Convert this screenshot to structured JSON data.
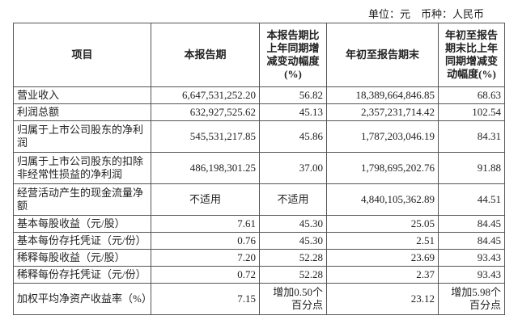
{
  "unit_line": "单位：元　币种：人民币",
  "headers": [
    "项目",
    "本报告期",
    "本报告期比上年同期增减变动幅度(%)",
    "年初至报告期末",
    "年初至报告期末比上年同期增减变动幅度(%)"
  ],
  "rows": [
    [
      "营业收入",
      "6,647,531,252.20",
      "56.82",
      "18,389,664,846.85",
      "68.63"
    ],
    [
      "利润总额",
      "632,927,525.62",
      "45.13",
      "2,357,231,714.42",
      "102.54"
    ],
    [
      "归属于上市公司股东的净利润",
      "545,531,217.85",
      "45.86",
      "1,787,203,046.19",
      "84.31"
    ],
    [
      "归属于上市公司股东的扣除非经常性损益的净利润",
      "486,198,301.25",
      "37.00",
      "1,798,695,202.76",
      "91.88"
    ],
    [
      "经营活动产生的现金流量净额",
      "不适用",
      "不适用",
      "4,840,105,362.89",
      "44.51"
    ],
    [
      "基本每股收益（元/股）",
      "7.61",
      "45.30",
      "25.05",
      "84.45"
    ],
    [
      "基本每份存托凭证（元/份）",
      "0.76",
      "45.30",
      "2.51",
      "84.45"
    ],
    [
      "稀释每股收益（元/股）",
      "7.20",
      "52.28",
      "23.69",
      "93.43"
    ],
    [
      "稀释每份存托凭证（元/份）",
      "0.72",
      "52.28",
      "2.37",
      "93.43"
    ],
    [
      "加权平均净资产收益率（%）",
      "7.15",
      "增加0.50个百分点",
      "23.12",
      "增加5.98个百分点"
    ]
  ]
}
